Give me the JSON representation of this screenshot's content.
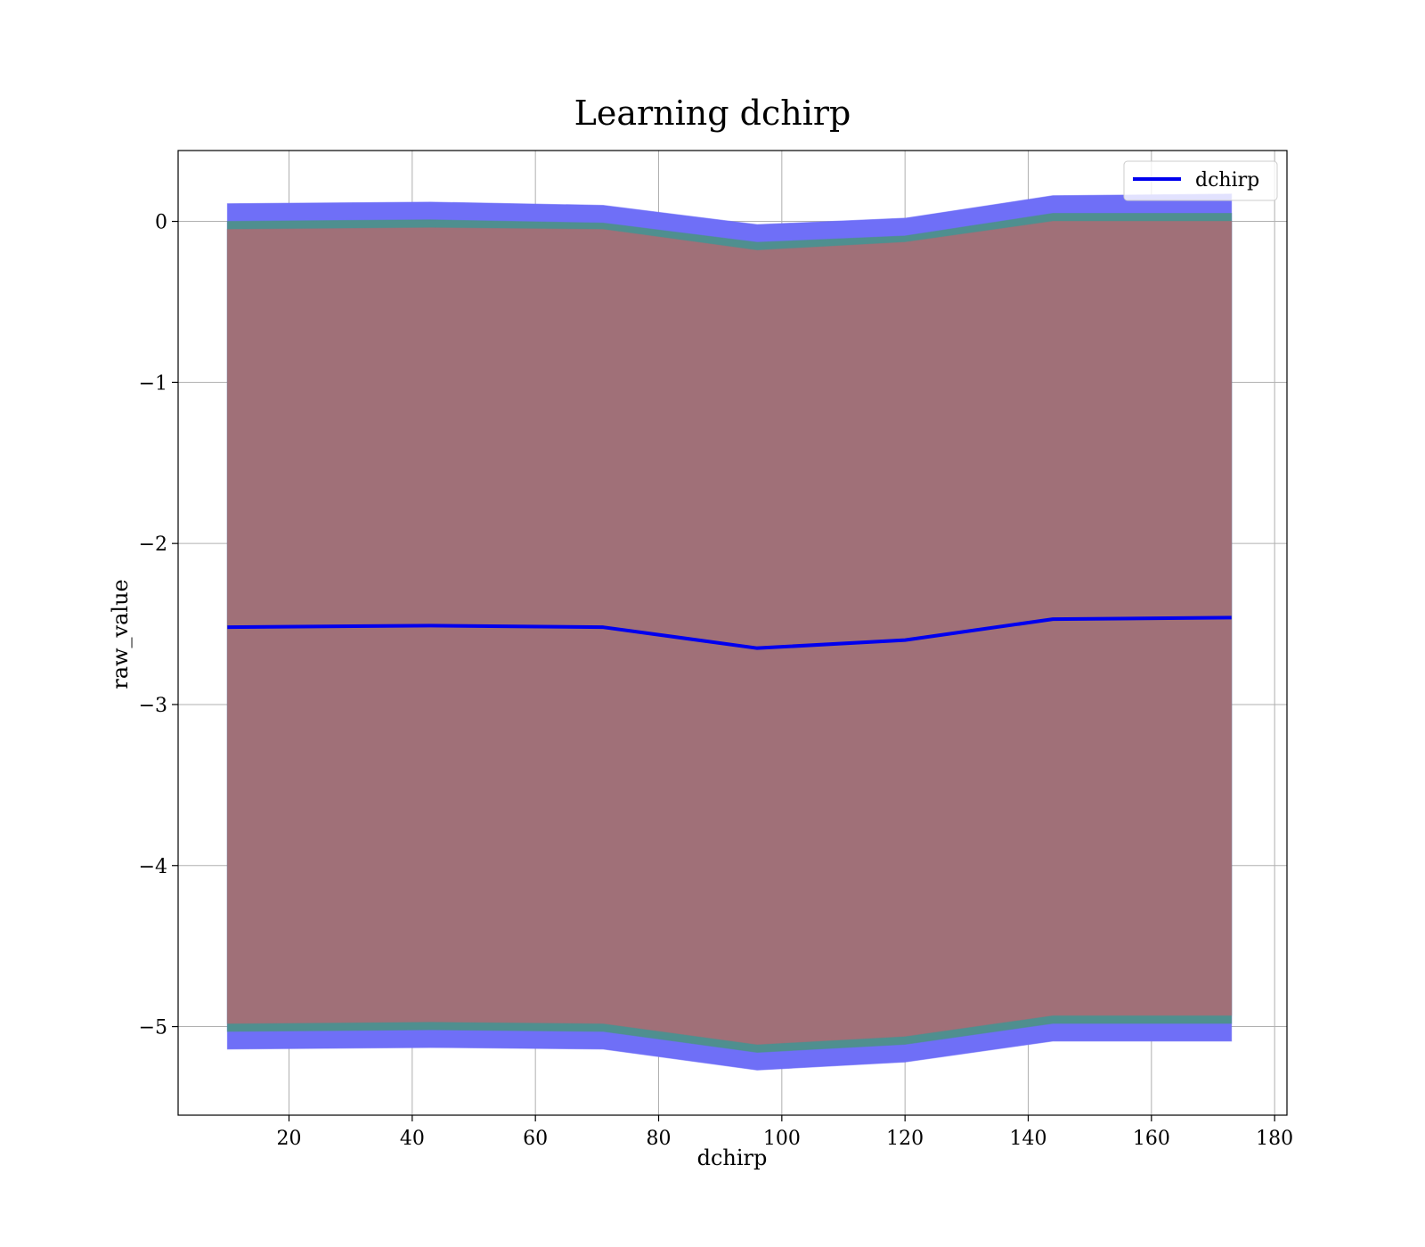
{
  "chart_data": {
    "type": "area",
    "title": "Learning dchirp",
    "xlabel": "dchirp",
    "ylabel": "raw_value",
    "xlim": [
      2,
      182
    ],
    "ylim": [
      -5.55,
      0.44
    ],
    "x_ticks": [
      20,
      40,
      60,
      80,
      100,
      120,
      140,
      160,
      180
    ],
    "y_ticks": [
      0,
      -1,
      -2,
      -3,
      -4,
      -5
    ],
    "x_tick_labels": [
      "20",
      "40",
      "60",
      "80",
      "100",
      "120",
      "140",
      "160",
      "180"
    ],
    "y_tick_labels": [
      "0",
      "−1",
      "−2",
      "−3",
      "−4",
      "−5"
    ],
    "grid": true,
    "legend": {
      "position": "upper-right",
      "entries": [
        "dchirp"
      ]
    },
    "x": [
      10,
      43,
      71,
      96,
      120,
      144,
      173
    ],
    "series": [
      {
        "name": "dchirp",
        "kind": "line",
        "color": "#0000ee",
        "values": [
          -2.52,
          -2.51,
          -2.52,
          -2.65,
          -2.6,
          -2.47,
          -2.46
        ]
      }
    ],
    "bands": [
      {
        "kind": "outer",
        "color": "#6f6ff7",
        "upper": [
          0.11,
          0.12,
          0.1,
          -0.02,
          0.02,
          0.16,
          0.17
        ],
        "lower": [
          -5.14,
          -5.13,
          -5.14,
          -5.27,
          -5.22,
          -5.09,
          -5.09
        ]
      },
      {
        "kind": "middle",
        "color": "#4f8f8f",
        "upper": [
          0.0,
          0.01,
          -0.01,
          -0.13,
          -0.09,
          0.05,
          0.05
        ],
        "lower": [
          -5.03,
          -5.02,
          -5.03,
          -5.16,
          -5.11,
          -4.98,
          -4.98
        ]
      },
      {
        "kind": "inner",
        "color": "#a07078",
        "upper": [
          -0.05,
          -0.04,
          -0.05,
          -0.18,
          -0.13,
          0.0,
          0.0
        ],
        "lower": [
          -4.98,
          -4.97,
          -4.98,
          -5.11,
          -5.06,
          -4.93,
          -4.93
        ]
      }
    ]
  }
}
